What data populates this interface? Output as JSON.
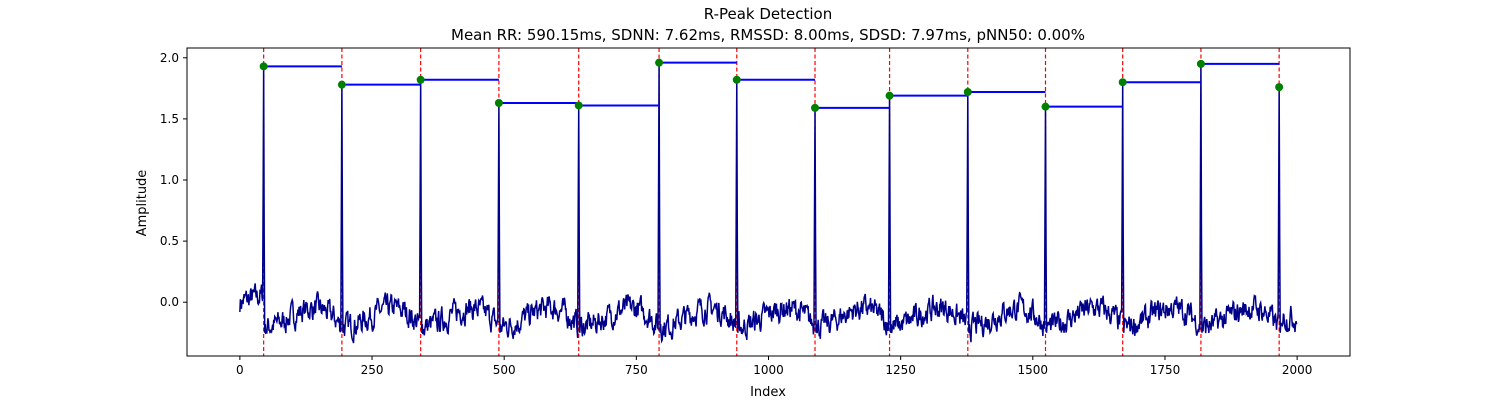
{
  "chart_data": {
    "type": "line",
    "title": "R-Peak Detection",
    "subtitle": "Mean RR: 590.15ms, SDNN: 7.62ms, RMSSD: 8.00ms, SDSD: 7.97ms, pNN50: 0.00%",
    "xlabel": "Index",
    "ylabel": "Amplitude",
    "xlim": [
      -100,
      2100
    ],
    "ylim": [
      -0.44,
      2.08
    ],
    "xticks": [
      0,
      250,
      500,
      750,
      1000,
      1250,
      1500,
      1750,
      2000
    ],
    "yticks": [
      0.0,
      0.5,
      1.0,
      1.5,
      2.0
    ],
    "xtick_labels": [
      "0",
      "250",
      "500",
      "750",
      "1000",
      "1250",
      "1500",
      "1750",
      "2000"
    ],
    "ytick_labels": [
      "0.0",
      "0.5",
      "1.0",
      "1.5",
      "2.0"
    ],
    "grid": false,
    "signal": {
      "n_samples": 2000,
      "baseline_range": [
        -0.35,
        0.28
      ],
      "color": "#00008b"
    },
    "r_peaks": {
      "x": [
        45,
        193,
        342,
        490,
        641,
        793,
        940,
        1088,
        1229,
        1377,
        1524,
        1670,
        1818,
        1966
      ],
      "y": [
        1.93,
        1.78,
        1.82,
        1.63,
        1.61,
        1.96,
        1.82,
        1.59,
        1.69,
        1.72,
        1.6,
        1.8,
        1.95,
        1.76
      ],
      "marker_color": "#008000",
      "line_color": "#ff0000"
    },
    "rr_segments": {
      "color": "#0000ff"
    }
  }
}
